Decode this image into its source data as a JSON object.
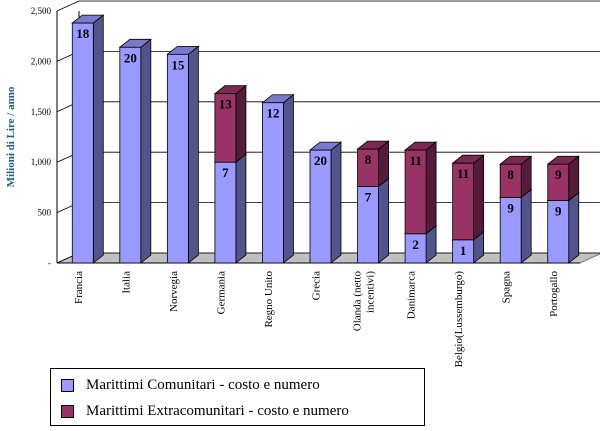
{
  "chart_data": {
    "type": "bar",
    "stacked": true,
    "three_d": true,
    "ylabel": "Milioni di Lire / anno",
    "ylim": [
      0,
      2500
    ],
    "yticks": [
      {
        "value": 0,
        "label": "-"
      },
      {
        "value": 500,
        "label": "500"
      },
      {
        "value": 1000,
        "label": "1,000"
      },
      {
        "value": 1500,
        "label": "1,500"
      },
      {
        "value": 2000,
        "label": "2,000"
      },
      {
        "value": 2500,
        "label": "2,500"
      }
    ],
    "grid": true,
    "categories": [
      "Francia",
      "Italia",
      "Norvegia",
      "Germania",
      "Regno Unito",
      "Grecia",
      "Olanda (netto incentivi)",
      "Danimarca",
      "Belgio(Lussemburgo)",
      "Spagna",
      "Portogallo"
    ],
    "category_lines": [
      [
        "Francia"
      ],
      [
        "Italia"
      ],
      [
        "Norvegia"
      ],
      [
        "Germania"
      ],
      [
        "Regno Unito"
      ],
      [
        "Grecia"
      ],
      [
        "Olanda (netto",
        "incentivi)"
      ],
      [
        "Danimarca"
      ],
      [
        "Belgio(Lussemburgo)"
      ],
      [
        "Spagna"
      ],
      [
        "Portogallo"
      ]
    ],
    "series": [
      {
        "name": "Marittimi Comunitari - costo e numero",
        "color": "#9999ff",
        "values": [
          2380,
          2140,
          2070,
          1000,
          1590,
          1120,
          760,
          290,
          230,
          650,
          620
        ],
        "labels": [
          "18",
          "20",
          "15",
          "7",
          "12",
          "20",
          "7",
          "2",
          "1",
          "9",
          "9"
        ]
      },
      {
        "name": "Marittimi Extracomunitari - costo e numero",
        "color": "#993366",
        "values": [
          0,
          0,
          0,
          680,
          0,
          0,
          370,
          830,
          760,
          330,
          360
        ],
        "labels": [
          "",
          "",
          "",
          "13",
          "",
          "",
          "8",
          "11",
          "11",
          "8",
          "9"
        ]
      }
    ],
    "legend_position": "bottom-left"
  }
}
